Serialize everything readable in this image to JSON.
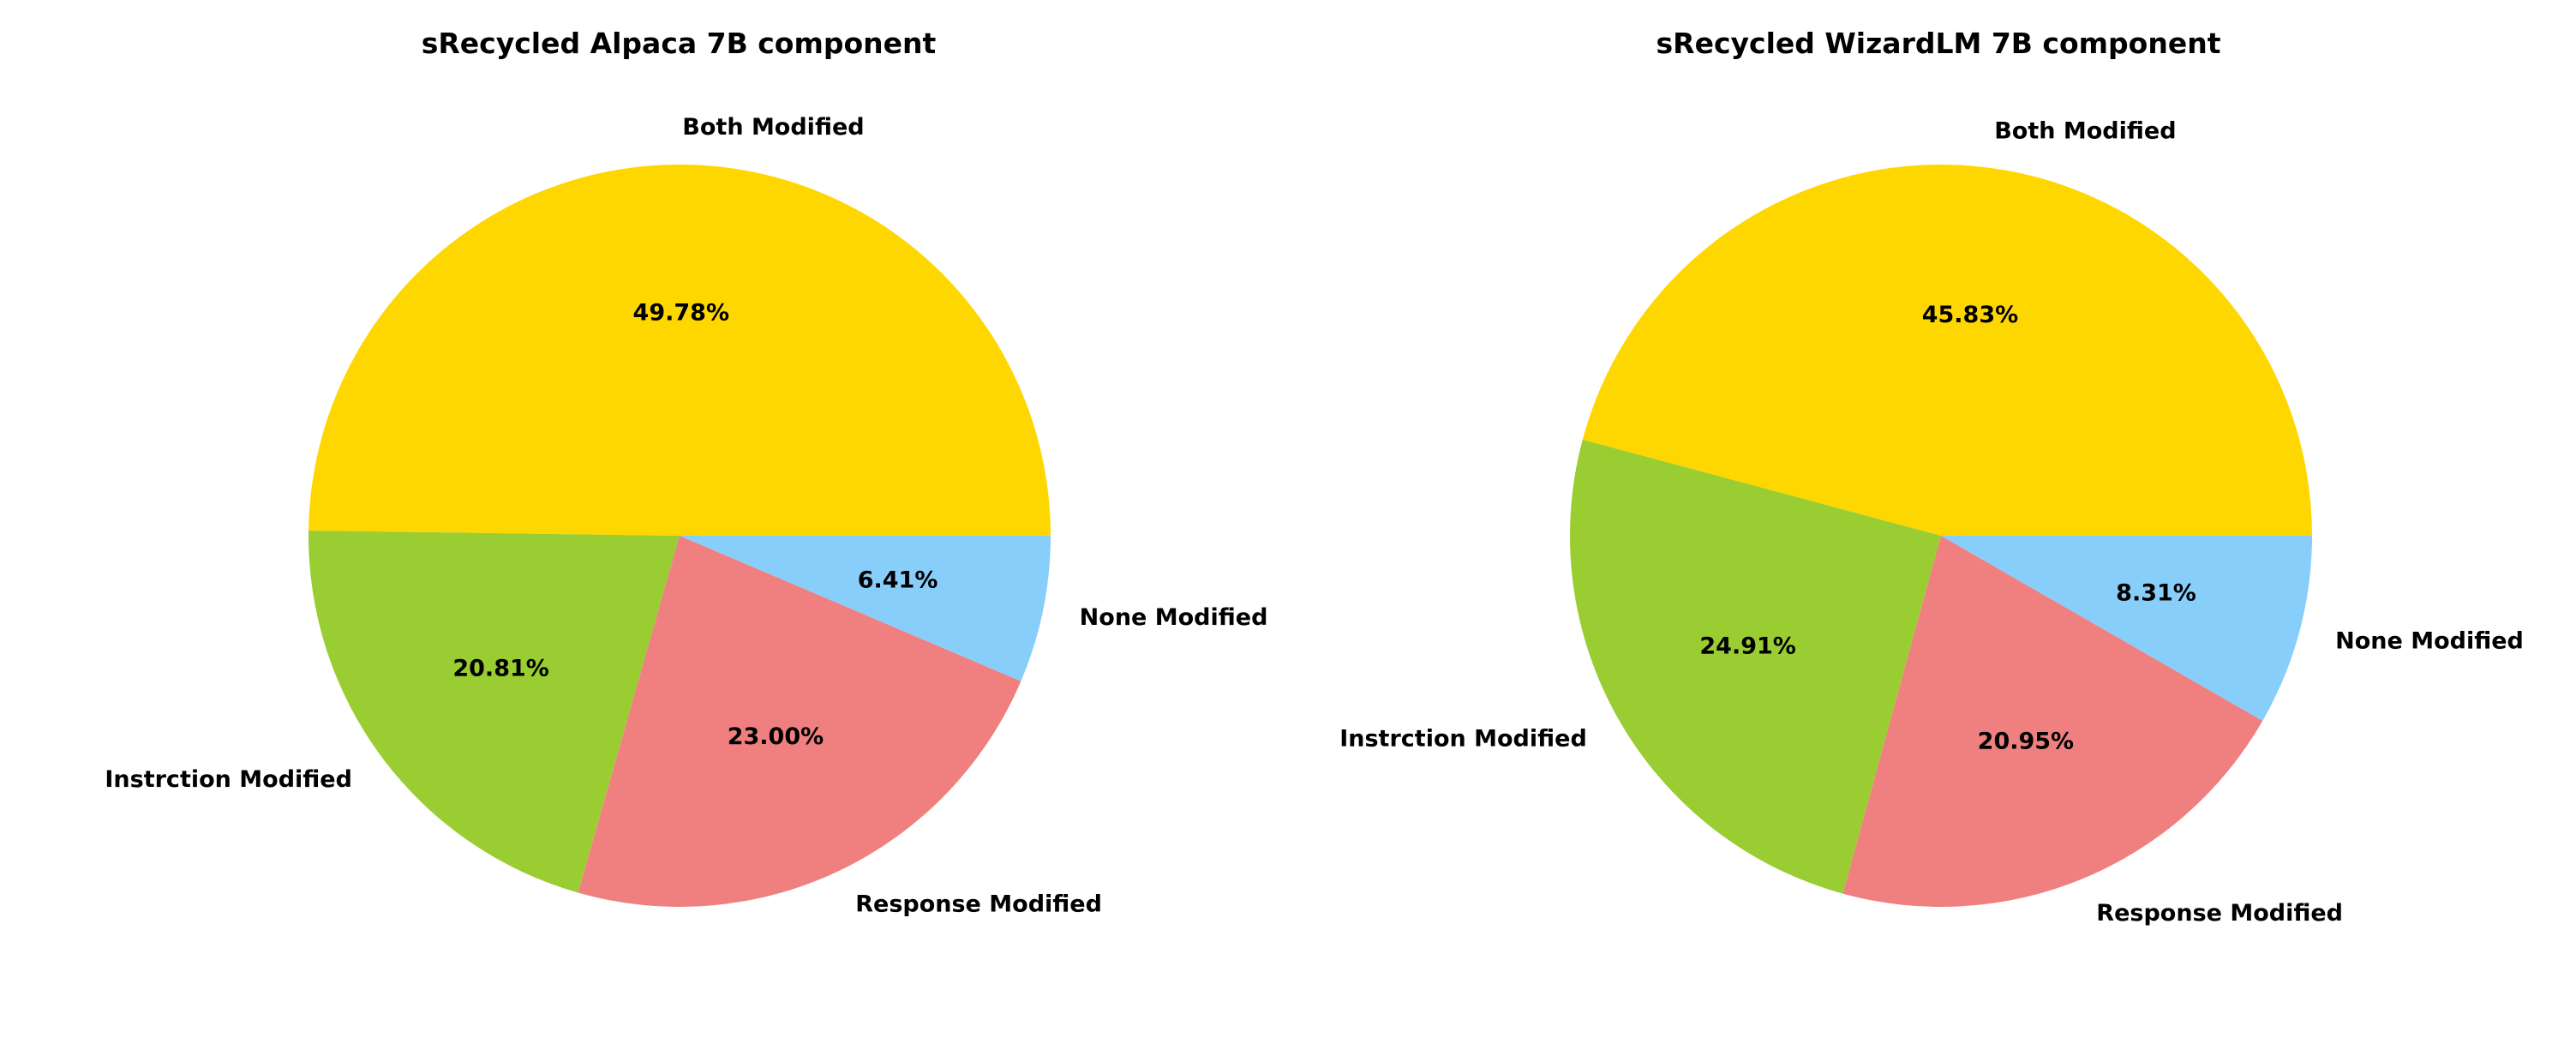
{
  "chart_data": [
    {
      "type": "pie",
      "title": "sRecycled Alpaca 7B component",
      "slices": [
        {
          "label": "Both Modified",
          "value": 49.78,
          "pct_text": "49.78%",
          "color": "#FFD700"
        },
        {
          "label": "Instrction Modified",
          "value": 20.81,
          "pct_text": "20.81%",
          "color": "#9ACD32"
        },
        {
          "label": "Response Modified",
          "value": 23.0,
          "pct_text": "23.00%",
          "color": "#F08080"
        },
        {
          "label": "None Modified",
          "value": 6.41,
          "pct_text": "6.41%",
          "color": "#87CEFA"
        }
      ],
      "start_angle_deg": 0,
      "direction": "counterclockwise"
    },
    {
      "type": "pie",
      "title": "sRecycled WizardLM 7B component",
      "slices": [
        {
          "label": "Both Modified",
          "value": 45.83,
          "pct_text": "45.83%",
          "color": "#FFD700"
        },
        {
          "label": "Instrction Modified",
          "value": 24.91,
          "pct_text": "24.91%",
          "color": "#9ACD32"
        },
        {
          "label": "Response Modified",
          "value": 20.95,
          "pct_text": "20.95%",
          "color": "#F08080"
        },
        {
          "label": "None Modified",
          "value": 8.31,
          "pct_text": "8.31%",
          "color": "#87CEFA"
        }
      ],
      "start_angle_deg": 0,
      "direction": "counterclockwise"
    }
  ]
}
